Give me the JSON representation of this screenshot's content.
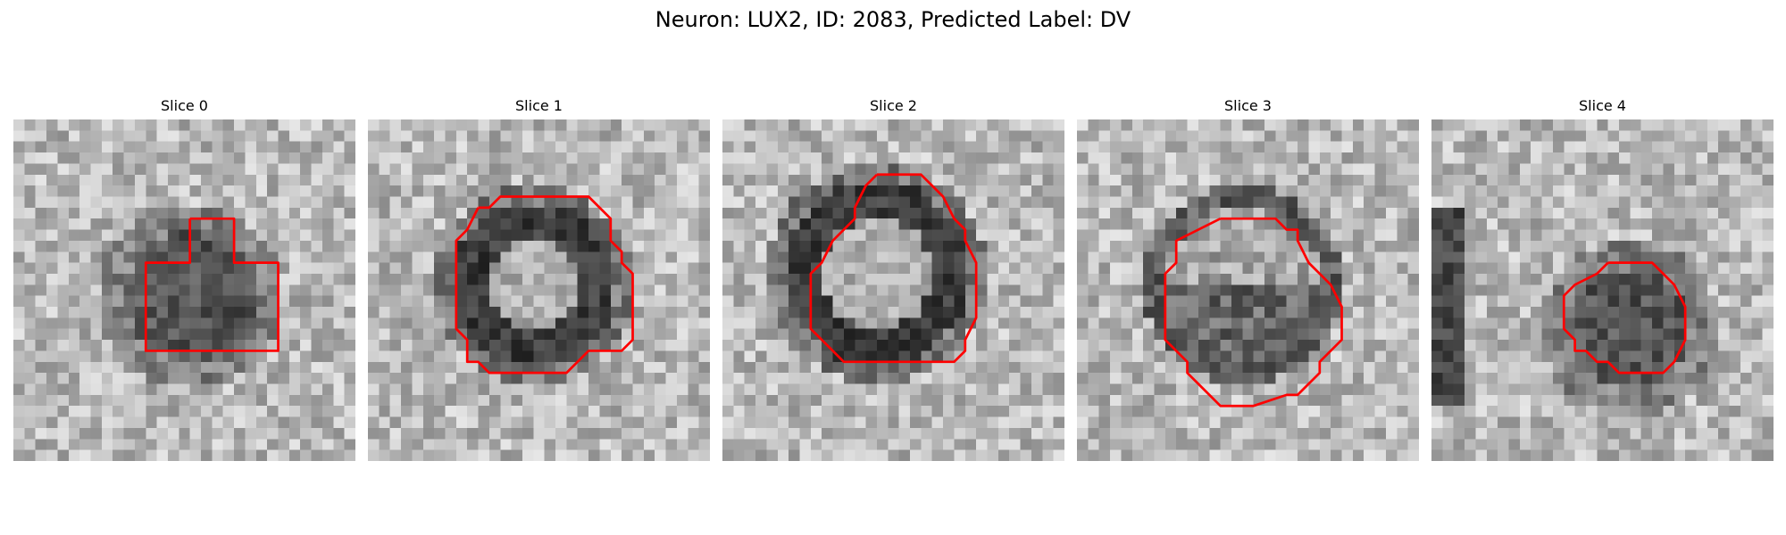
{
  "figure": {
    "title": "Neuron: LUX2, ID: 2083, Predicted Label: DV",
    "contour_color": "#ff0000"
  },
  "slices": [
    {
      "label": "Slice 0",
      "cell_polarity": "dark",
      "cell_center": [
        16,
        16
      ],
      "cell_radius": 6
    },
    {
      "label": "Slice 1",
      "cell_polarity": "ring",
      "cell_center": [
        15,
        15
      ],
      "cell_radius": 6.5
    },
    {
      "label": "Slice 2",
      "cell_polarity": "ring",
      "cell_center": [
        14,
        14
      ],
      "cell_radius": 7.5
    },
    {
      "label": "Slice 3",
      "cell_polarity": "mixed",
      "cell_center": [
        15,
        15
      ],
      "cell_radius": 7
    },
    {
      "label": "Slice 4",
      "cell_polarity": "dark",
      "cell_center": [
        18,
        19
      ],
      "cell_radius": 5.5
    }
  ]
}
